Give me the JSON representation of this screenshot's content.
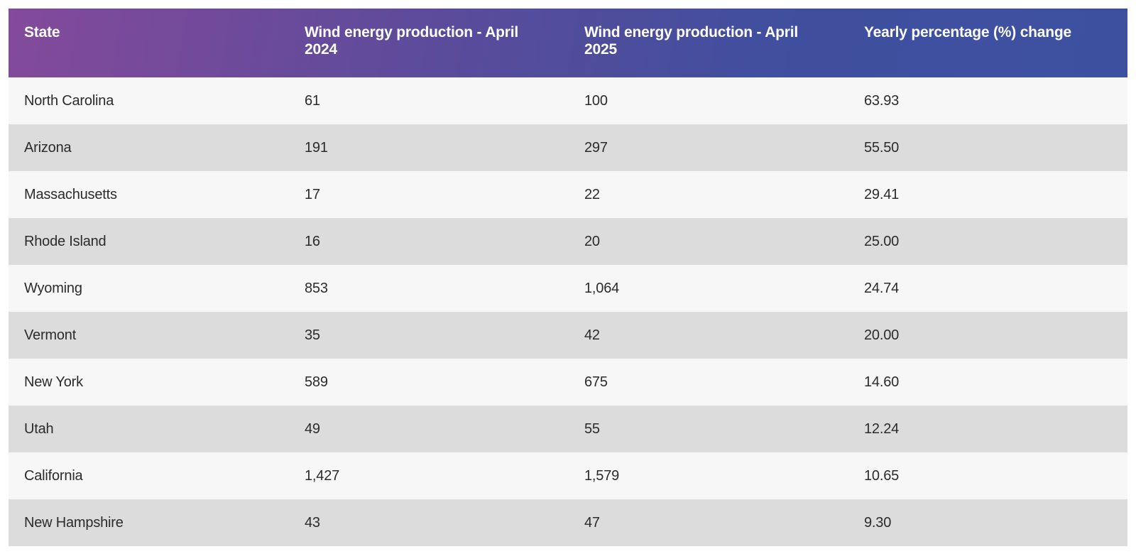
{
  "chart_data": {
    "type": "table",
    "columns": [
      "State",
      "Wind energy production - April 2024",
      "Wind energy production - April 2025",
      "Yearly percentage (%) change"
    ],
    "rows": [
      [
        "North Carolina",
        "61",
        "100",
        "63.93"
      ],
      [
        "Arizona",
        "191",
        "297",
        "55.50"
      ],
      [
        "Massachusetts",
        "17",
        "22",
        "29.41"
      ],
      [
        "Rhode Island",
        "16",
        "20",
        "25.00"
      ],
      [
        "Wyoming",
        "853",
        "1,064",
        "24.74"
      ],
      [
        "Vermont",
        "35",
        "42",
        "20.00"
      ],
      [
        "New York",
        "589",
        "675",
        "14.60"
      ],
      [
        "Utah",
        "49",
        "55",
        "12.24"
      ],
      [
        "California",
        "1,427",
        "1,579",
        "10.65"
      ],
      [
        "New Hampshire",
        "43",
        "47",
        "9.30"
      ]
    ]
  },
  "colors": {
    "header_gradient_start": "#844a9b",
    "header_gradient_end": "#3d50a0",
    "row_light": "#f7f7f7",
    "row_dark": "#dcdcdc"
  }
}
